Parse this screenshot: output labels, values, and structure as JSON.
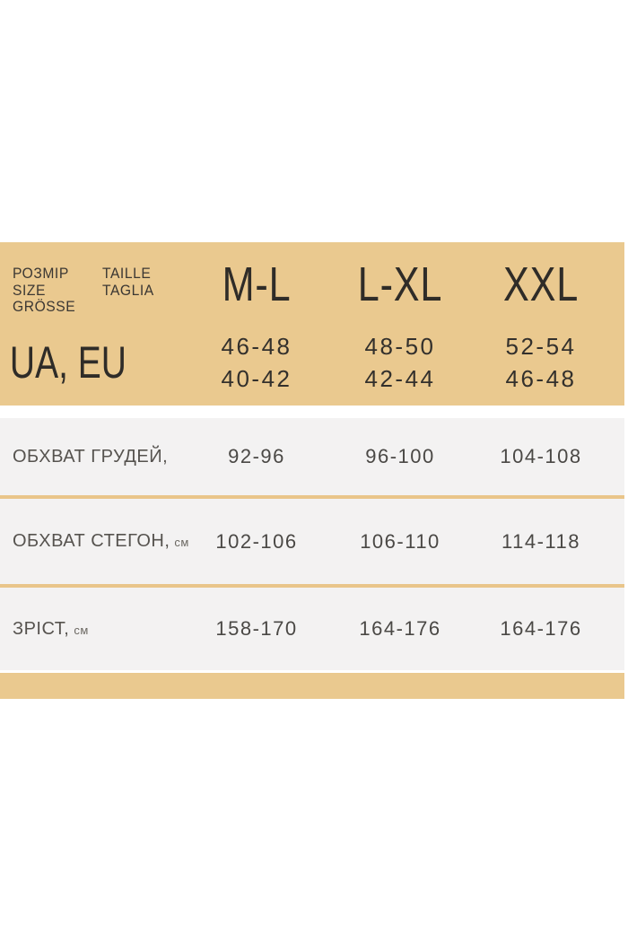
{
  "chart_data": {
    "type": "table",
    "title": "Garment size chart (UA/EU) with body measurements in cm",
    "header": {
      "corner_labels": {
        "line1": "РОЗМІР",
        "line2": "SIZE",
        "line3": "GRÖSSE",
        "alt1": "TAILLE",
        "alt2": "TAGLIA"
      },
      "region_row_label": "UA, EU",
      "columns": [
        "M-L",
        "L-XL",
        "XXL"
      ],
      "ua_sizes": [
        "46-48",
        "48-50",
        "52-54"
      ],
      "eu_sizes": [
        "40-42",
        "42-44",
        "46-48"
      ]
    },
    "body_rows": [
      {
        "label": "ОБХВАТ ГРУДЕЙ,",
        "unit": "",
        "values": [
          "92-96",
          "96-100",
          "104-108"
        ]
      },
      {
        "label": "ОБХВАТ СТЕГОН,",
        "unit": "см",
        "values": [
          "102-106",
          "106-110",
          "114-118"
        ]
      },
      {
        "label": "ЗРІСТ,",
        "unit": "см",
        "values": [
          "158-170",
          "164-176",
          "164-176"
        ]
      }
    ]
  },
  "colors": {
    "header_bg": "#eac98f",
    "row_bg": "#f3f2f2",
    "divider": "#e9c58a",
    "header_text": "#2f2c28",
    "label_text": "#56534f",
    "value_text": "#4a4845"
  }
}
